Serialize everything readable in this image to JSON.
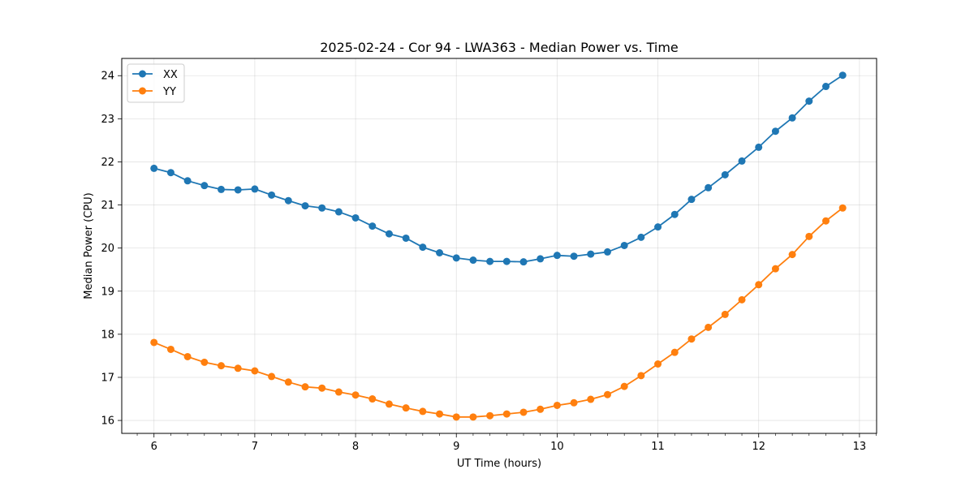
{
  "chart_data": {
    "type": "line",
    "title": "2025-02-24 - Cor 94 - LWA363 - Median Power vs. Time",
    "xlabel": "UT Time (hours)",
    "ylabel": "Median Power (CPU)",
    "xlim": [
      5.68,
      13.17
    ],
    "ylim": [
      15.7,
      24.4
    ],
    "xticks": [
      6,
      7,
      8,
      9,
      10,
      11,
      12,
      13
    ],
    "yticks": [
      16,
      17,
      18,
      19,
      20,
      21,
      22,
      23,
      24
    ],
    "grid": true,
    "legend_position": "top-left",
    "x": [
      6.0,
      6.1667,
      6.3333,
      6.5,
      6.6667,
      6.8333,
      7.0,
      7.1667,
      7.3333,
      7.5,
      7.6667,
      7.8333,
      8.0,
      8.1667,
      8.3333,
      8.5,
      8.6667,
      8.8333,
      9.0,
      9.1667,
      9.3333,
      9.5,
      9.6667,
      9.8333,
      10.0,
      10.1667,
      10.3333,
      10.5,
      10.6667,
      10.8333,
      11.0,
      11.1667,
      11.3333,
      11.5,
      11.6667,
      11.8333,
      12.0,
      12.1667,
      12.3333,
      12.5,
      12.6667,
      12.8333
    ],
    "series": [
      {
        "name": "XX",
        "color": "#1f77b4",
        "values": [
          21.85,
          21.75,
          21.56,
          21.45,
          21.36,
          21.35,
          21.37,
          21.23,
          21.1,
          20.98,
          20.93,
          20.84,
          20.7,
          20.51,
          20.33,
          20.23,
          20.02,
          19.89,
          19.77,
          19.72,
          19.69,
          19.69,
          19.68,
          19.75,
          19.83,
          19.81,
          19.86,
          19.91,
          20.06,
          20.25,
          20.49,
          20.78,
          21.13,
          21.4,
          21.7,
          22.02,
          22.34,
          22.71,
          23.02,
          23.41,
          23.75,
          24.01
        ]
      },
      {
        "name": "YY",
        "color": "#ff7f0e",
        "values": [
          17.81,
          17.65,
          17.48,
          17.35,
          17.27,
          17.21,
          17.15,
          17.02,
          16.89,
          16.78,
          16.75,
          16.66,
          16.59,
          16.5,
          16.38,
          16.29,
          16.21,
          16.15,
          16.08,
          16.08,
          16.11,
          16.15,
          16.19,
          16.26,
          16.35,
          16.41,
          16.49,
          16.6,
          16.79,
          17.04,
          17.31,
          17.58,
          17.89,
          18.16,
          18.46,
          18.8,
          19.15,
          19.52,
          19.85,
          20.27,
          20.63,
          20.93
        ]
      }
    ]
  }
}
